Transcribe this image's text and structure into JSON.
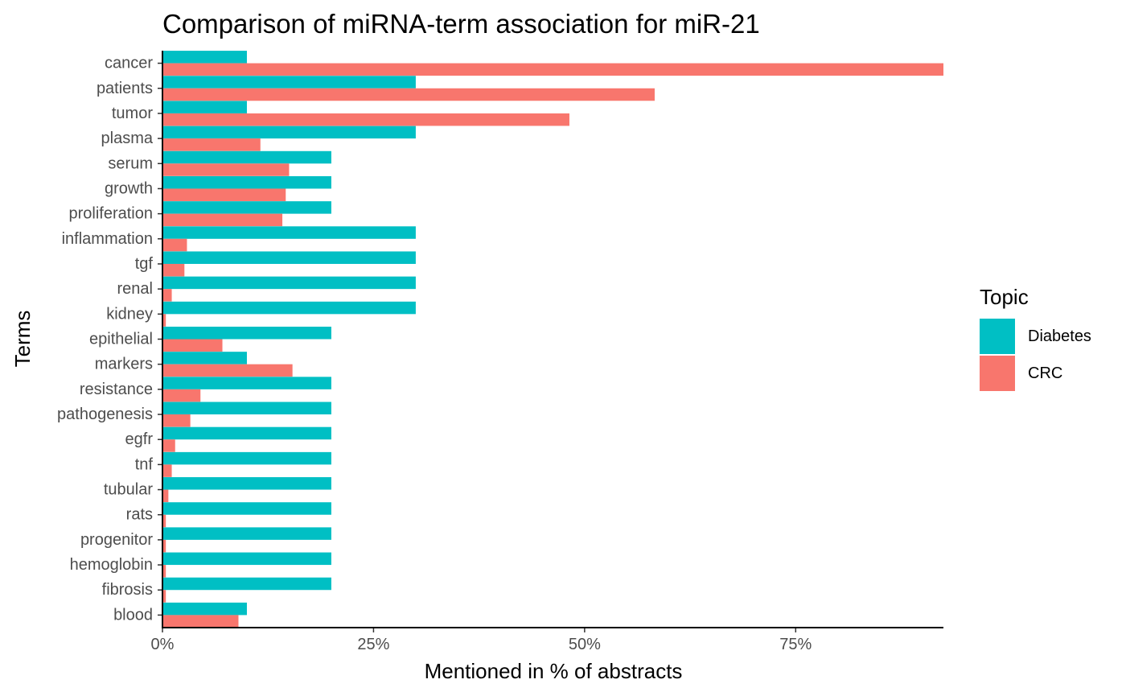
{
  "chart_data": {
    "type": "bar",
    "orientation": "horizontal",
    "title": "Comparison of miRNA-term association for miR-21",
    "xlabel": "Mentioned in % of abstracts",
    "ylabel": "Terms",
    "xlim": [
      0,
      92.5
    ],
    "x_ticks": [
      0,
      25,
      50,
      75
    ],
    "x_tick_labels": [
      "0%",
      "25%",
      "50%",
      "75%"
    ],
    "grid": false,
    "legend": {
      "title": "Topic",
      "position": "right"
    },
    "categories": [
      "cancer",
      "patients",
      "tumor",
      "plasma",
      "serum",
      "growth",
      "proliferation",
      "inflammation",
      "tgf",
      "renal",
      "kidney",
      "epithelial",
      "markers",
      "resistance",
      "pathogenesis",
      "egfr",
      "tnf",
      "tubular",
      "rats",
      "progenitor",
      "hemoglobin",
      "fibrosis",
      "blood"
    ],
    "series": [
      {
        "name": "Diabetes",
        "color": "#00BFC4",
        "values": [
          10,
          30,
          10,
          30,
          20,
          20,
          20,
          30,
          30,
          30,
          30,
          20,
          10,
          20,
          20,
          20,
          20,
          20,
          20,
          20,
          20,
          20,
          10
        ]
      },
      {
        "name": "CRC",
        "color": "#F8766D",
        "values": [
          92.5,
          58.3,
          48.2,
          11.6,
          15.0,
          14.6,
          14.2,
          2.9,
          2.6,
          1.1,
          0.4,
          7.1,
          15.4,
          4.5,
          3.3,
          1.5,
          1.1,
          0.7,
          0.4,
          0.4,
          0.4,
          0.4,
          9.0
        ]
      }
    ]
  }
}
